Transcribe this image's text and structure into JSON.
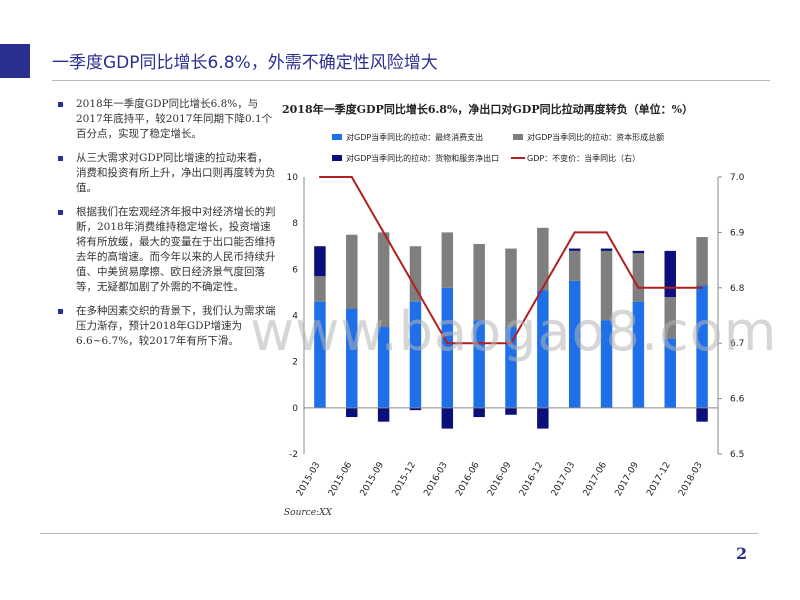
{
  "slide": {
    "title": "一季度GDP同比增长6.8%，外需不确定性风险增大",
    "page_number": "2",
    "watermark": "www.baogao8.com",
    "accent_color": "#2b2f8f"
  },
  "bullets": [
    "2018年一季度GDP同比增长6.8%，与2017年底持平，较2017年同期下降0.1个百分点，实现了稳定增长。",
    "从三大需求对GDP同比增速的拉动来看，消费和投资有所上升，净出口则再度转为负值。",
    "根据我们在宏观经济年报中对经济增长的判断，2018年消费维持稳定增长，投资增速将有所放缓，最大的变量在于出口能否维持去年的高增速。而今年以来的人民币持续升值、中美贸易摩擦、欧日经济景气度回落等，无疑都加剧了外需的不确定性。",
    "在多种因素交织的背景下，我们认为需求端压力渐存，预计2018年GDP增速为6.6~6.7%，较2017年有所下滑。"
  ],
  "source": "Source:XX",
  "chart_data": {
    "type": "bar",
    "title": "2018年一季度GDP同比增长6.8%，净出口对GDP同比拉动再度转负（单位：%）",
    "categories": [
      "2015-03",
      "2015-06",
      "2015-09",
      "2015-12",
      "2016-03",
      "2016-06",
      "2016-09",
      "2016-12",
      "2017-03",
      "2017-06",
      "2017-09",
      "2017-12",
      "2018-03"
    ],
    "series": [
      {
        "name": "对GDP当季同比的拉动：最终消费支出",
        "kind": "stacked_bar",
        "color": "#1e6fe8",
        "values": [
          4.6,
          4.3,
          3.5,
          4.6,
          5.2,
          3.8,
          3.5,
          5.1,
          5.5,
          3.8,
          4.6,
          3.0,
          5.3
        ]
      },
      {
        "name": "对GDP当季同比的拉动：资本形成总额",
        "kind": "stacked_bar",
        "color": "#7f7f7f",
        "values": [
          1.1,
          3.2,
          4.1,
          2.4,
          2.4,
          3.3,
          3.4,
          2.7,
          1.3,
          3.0,
          2.1,
          1.8,
          2.1
        ]
      },
      {
        "name": "对GDP当季同比的拉动：货物和服务净出口",
        "kind": "stacked_bar",
        "color": "#0a0f7a",
        "values": [
          1.3,
          -0.4,
          -0.6,
          -0.1,
          -0.9,
          -0.4,
          -0.3,
          -0.9,
          0.1,
          0.1,
          0.1,
          2.0,
          -0.6
        ]
      },
      {
        "name": "GDP：不变价：当季同比（右）",
        "kind": "line",
        "axis": "right",
        "color": "#b02020",
        "values": [
          7.0,
          7.0,
          6.9,
          6.8,
          6.7,
          6.7,
          6.7,
          6.8,
          6.9,
          6.9,
          6.8,
          6.8,
          6.8
        ]
      }
    ],
    "left_axis": {
      "ylim": [
        -2,
        10
      ],
      "ticks": [
        "10",
        "8",
        "6",
        "4",
        "2",
        "0",
        "-2"
      ]
    },
    "right_axis": {
      "ylim": [
        6.5,
        7.0
      ],
      "ticks": [
        "7.0",
        "6.9",
        "6.8",
        "6.7",
        "6.6",
        "6.5"
      ]
    },
    "legend_position": "top",
    "grid": false
  }
}
